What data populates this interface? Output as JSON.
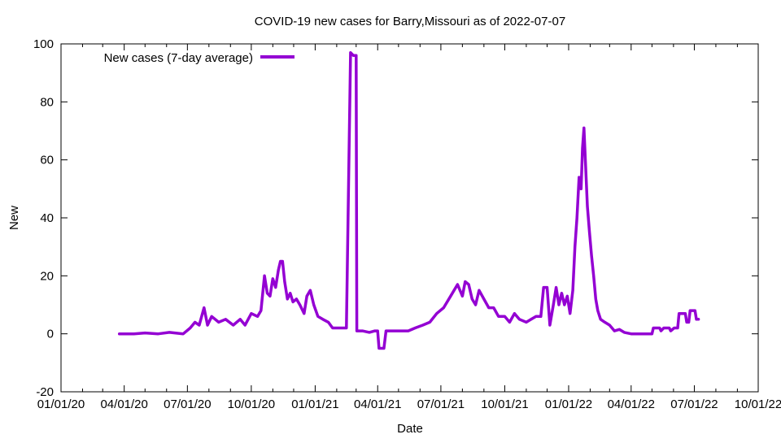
{
  "chart_data": {
    "type": "line",
    "title": "COVID-19 new cases for Barry,Missouri as of 2022-07-07",
    "xlabel": "Date",
    "ylabel": "New",
    "xlim": [
      "2020-01-01",
      "2022-10-01"
    ],
    "ylim": [
      -20,
      100
    ],
    "x_ticks": [
      "01/01/20",
      "04/01/20",
      "07/01/20",
      "10/01/20",
      "01/01/21",
      "04/01/21",
      "07/01/21",
      "10/01/21",
      "01/01/22",
      "04/01/22",
      "07/01/22",
      "10/01/22"
    ],
    "y_ticks": [
      -20,
      0,
      20,
      40,
      60,
      80,
      100
    ],
    "grid": false,
    "legend_position": "top-left",
    "series": [
      {
        "name": "New cases (7-day average)",
        "color": "#9400d3",
        "points": [
          [
            "2020-03-25",
            0
          ],
          [
            "2020-04-15",
            0
          ],
          [
            "2020-05-01",
            0.3
          ],
          [
            "2020-05-20",
            0
          ],
          [
            "2020-06-05",
            0.5
          ],
          [
            "2020-06-25",
            0
          ],
          [
            "2020-07-05",
            2
          ],
          [
            "2020-07-12",
            4
          ],
          [
            "2020-07-18",
            3
          ],
          [
            "2020-07-25",
            9
          ],
          [
            "2020-07-30",
            3
          ],
          [
            "2020-08-05",
            6
          ],
          [
            "2020-08-15",
            4
          ],
          [
            "2020-08-25",
            5
          ],
          [
            "2020-09-05",
            3
          ],
          [
            "2020-09-15",
            5
          ],
          [
            "2020-09-22",
            3
          ],
          [
            "2020-10-01",
            7
          ],
          [
            "2020-10-10",
            6
          ],
          [
            "2020-10-15",
            8
          ],
          [
            "2020-10-20",
            20
          ],
          [
            "2020-10-24",
            14
          ],
          [
            "2020-10-28",
            13
          ],
          [
            "2020-11-01",
            19
          ],
          [
            "2020-11-05",
            16
          ],
          [
            "2020-11-09",
            22
          ],
          [
            "2020-11-12",
            25
          ],
          [
            "2020-11-15",
            25
          ],
          [
            "2020-11-18",
            18
          ],
          [
            "2020-11-22",
            12
          ],
          [
            "2020-11-26",
            14
          ],
          [
            "2020-11-30",
            11
          ],
          [
            "2020-12-05",
            12
          ],
          [
            "2020-12-10",
            10
          ],
          [
            "2020-12-16",
            7
          ],
          [
            "2020-12-20",
            13
          ],
          [
            "2020-12-25",
            15
          ],
          [
            "2020-12-30",
            10
          ],
          [
            "2021-01-05",
            6
          ],
          [
            "2021-01-12",
            5
          ],
          [
            "2021-01-20",
            4
          ],
          [
            "2021-01-26",
            2
          ],
          [
            "2021-02-05",
            2
          ],
          [
            "2021-02-10",
            2
          ],
          [
            "2021-02-15",
            2
          ],
          [
            "2021-02-21",
            97
          ],
          [
            "2021-02-25",
            96
          ],
          [
            "2021-03-01",
            96
          ],
          [
            "2021-03-02",
            1
          ],
          [
            "2021-03-10",
            1
          ],
          [
            "2021-03-20",
            0.5
          ],
          [
            "2021-03-28",
            1
          ],
          [
            "2021-04-01",
            1
          ],
          [
            "2021-04-03",
            -5
          ],
          [
            "2021-04-10",
            -5
          ],
          [
            "2021-04-13",
            1
          ],
          [
            "2021-04-20",
            1
          ],
          [
            "2021-05-01",
            1
          ],
          [
            "2021-05-15",
            1
          ],
          [
            "2021-05-25",
            2
          ],
          [
            "2021-06-05",
            3
          ],
          [
            "2021-06-15",
            4
          ],
          [
            "2021-06-25",
            7
          ],
          [
            "2021-07-05",
            9
          ],
          [
            "2021-07-15",
            13
          ],
          [
            "2021-07-25",
            17
          ],
          [
            "2021-08-01",
            13
          ],
          [
            "2021-08-05",
            18
          ],
          [
            "2021-08-10",
            17
          ],
          [
            "2021-08-15",
            12
          ],
          [
            "2021-08-20",
            10
          ],
          [
            "2021-08-25",
            15
          ],
          [
            "2021-09-01",
            12
          ],
          [
            "2021-09-08",
            9
          ],
          [
            "2021-09-15",
            9
          ],
          [
            "2021-09-22",
            6
          ],
          [
            "2021-10-01",
            6
          ],
          [
            "2021-10-08",
            4
          ],
          [
            "2021-10-15",
            7
          ],
          [
            "2021-10-22",
            5
          ],
          [
            "2021-11-01",
            4
          ],
          [
            "2021-11-08",
            5
          ],
          [
            "2021-11-15",
            6
          ],
          [
            "2021-11-22",
            6
          ],
          [
            "2021-11-26",
            16
          ],
          [
            "2021-12-01",
            16
          ],
          [
            "2021-12-05",
            3
          ],
          [
            "2021-12-10",
            10
          ],
          [
            "2021-12-14",
            16
          ],
          [
            "2021-12-18",
            10
          ],
          [
            "2021-12-22",
            14
          ],
          [
            "2021-12-26",
            10
          ],
          [
            "2021-12-30",
            13
          ],
          [
            "2022-01-03",
            7
          ],
          [
            "2022-01-07",
            15
          ],
          [
            "2022-01-10",
            30
          ],
          [
            "2022-01-13",
            40
          ],
          [
            "2022-01-16",
            54
          ],
          [
            "2022-01-19",
            50
          ],
          [
            "2022-01-21",
            64
          ],
          [
            "2022-01-23",
            71
          ],
          [
            "2022-01-25",
            60
          ],
          [
            "2022-01-28",
            44
          ],
          [
            "2022-01-31",
            35
          ],
          [
            "2022-02-03",
            27
          ],
          [
            "2022-02-06",
            20
          ],
          [
            "2022-02-09",
            12
          ],
          [
            "2022-02-12",
            8
          ],
          [
            "2022-02-16",
            5
          ],
          [
            "2022-02-22",
            4
          ],
          [
            "2022-03-01",
            3
          ],
          [
            "2022-03-08",
            1
          ],
          [
            "2022-03-15",
            1.5
          ],
          [
            "2022-03-22",
            0.5
          ],
          [
            "2022-04-01",
            0
          ],
          [
            "2022-04-20",
            0
          ],
          [
            "2022-05-01",
            0
          ],
          [
            "2022-05-03",
            2
          ],
          [
            "2022-05-12",
            2
          ],
          [
            "2022-05-14",
            1
          ],
          [
            "2022-05-18",
            2
          ],
          [
            "2022-05-26",
            2
          ],
          [
            "2022-05-28",
            1
          ],
          [
            "2022-06-02",
            2
          ],
          [
            "2022-06-07",
            2
          ],
          [
            "2022-06-09",
            7
          ],
          [
            "2022-06-18",
            7
          ],
          [
            "2022-06-20",
            4
          ],
          [
            "2022-06-23",
            4
          ],
          [
            "2022-06-25",
            8
          ],
          [
            "2022-07-02",
            8
          ],
          [
            "2022-07-04",
            5
          ],
          [
            "2022-07-07",
            5
          ]
        ]
      }
    ]
  }
}
